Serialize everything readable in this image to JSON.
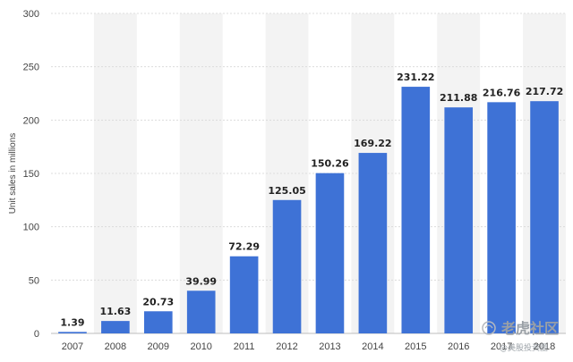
{
  "chart_data": {
    "type": "bar",
    "ylabel": "Unit sales in millions",
    "xlabel": "",
    "ylim": [
      0,
      300
    ],
    "yticks": [
      0,
      50,
      100,
      150,
      200,
      250,
      300
    ],
    "categories": [
      "2007",
      "2008",
      "2009",
      "2010",
      "2011",
      "2012",
      "2013",
      "2014",
      "2015",
      "2016",
      "2017",
      "2018"
    ],
    "values": [
      1.39,
      11.63,
      20.73,
      39.99,
      72.29,
      125.05,
      150.26,
      169.22,
      231.22,
      211.88,
      216.76,
      217.72
    ],
    "data_labels": [
      "1.39",
      "11.63",
      "20.73",
      "39.99",
      "72.29",
      "125.05",
      "150.26",
      "169.22",
      "231.22",
      "211.88",
      "216.76",
      "217.72"
    ],
    "grid": true,
    "bar_color": "#3e72d6",
    "band_color": "#f3f3f3"
  },
  "watermark": {
    "text": "老虎社区",
    "subtext": "@美股投资圈"
  }
}
